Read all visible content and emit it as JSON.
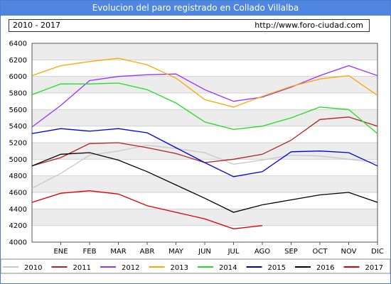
{
  "header": {
    "title": "Evolucion del paro registrado en Collado Villalba",
    "period": "2010 - 2017",
    "url": "http://www.foro-ciudad.com"
  },
  "chart_data": {
    "type": "line",
    "categories": [
      "ENE",
      "FEB",
      "MAR",
      "ABR",
      "MAY",
      "JUN",
      "JUL",
      "AGO",
      "SEP",
      "OCT",
      "NOV",
      "DIC"
    ],
    "ylim": [
      4000,
      6400
    ],
    "yticks": [
      4000,
      4200,
      4400,
      4600,
      4800,
      5000,
      5200,
      5400,
      5600,
      5800,
      6000,
      6200,
      6400
    ],
    "grid": "horizontal bands",
    "legend_position": "bottom",
    "series": [
      {
        "name": "2010",
        "color": "#c8c8c8",
        "values": [
          4830,
          5050,
          5100,
          5170,
          5130,
          5080,
          4940,
          4990,
          5050,
          5040,
          5000,
          4960
        ],
        "start": 4650
      },
      {
        "name": "2011",
        "color": "#b22222",
        "values": [
          5020,
          5190,
          5200,
          5140,
          5070,
          4960,
          5000,
          5060,
          5230,
          5480,
          5510,
          5400
        ],
        "start": 4920
      },
      {
        "name": "2012",
        "color": "#9b30ff",
        "values": [
          5650,
          5950,
          6000,
          6020,
          6030,
          5840,
          5700,
          5750,
          5870,
          6010,
          6130,
          6010
        ],
        "start": 5390
      },
      {
        "name": "2013",
        "color": "#ffa500",
        "values": [
          6130,
          6180,
          6220,
          6140,
          5980,
          5720,
          5630,
          5760,
          5880,
          5970,
          6010,
          5770
        ],
        "start": 6010
      },
      {
        "name": "2014",
        "color": "#22dd22",
        "values": [
          5910,
          5910,
          5920,
          5840,
          5680,
          5450,
          5360,
          5400,
          5500,
          5630,
          5600,
          5310
        ],
        "start": 5780
      },
      {
        "name": "2015",
        "color": "#0000dd",
        "values": [
          5370,
          5340,
          5370,
          5320,
          5140,
          4960,
          4790,
          4850,
          5090,
          5100,
          5080,
          4920
        ],
        "start": 5310
      },
      {
        "name": "2016",
        "color": "#000000",
        "values": [
          5060,
          5080,
          4990,
          4850,
          4690,
          4530,
          4360,
          4450,
          4510,
          4570,
          4600,
          4480
        ],
        "start": 4920
      },
      {
        "name": "2017",
        "color": "#dd0000",
        "values": [
          4590,
          4620,
          4580,
          4440,
          4360,
          4280,
          4160,
          4200,
          null,
          null,
          null,
          null
        ],
        "start": 4480
      }
    ]
  }
}
